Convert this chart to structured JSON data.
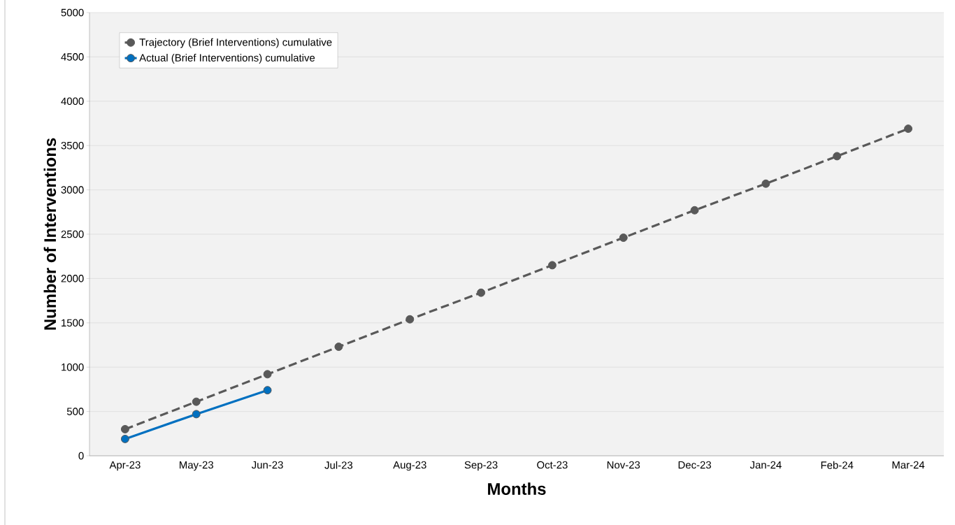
{
  "chart_data": {
    "type": "line",
    "xlabel": "Months",
    "ylabel": "Number of Interventions",
    "categories": [
      "Apr-23",
      "May-23",
      "Jun-23",
      "Jul-23",
      "Aug-23",
      "Sep-23",
      "Oct-23",
      "Nov-23",
      "Dec-23",
      "Jan-24",
      "Feb-24",
      "Mar-24"
    ],
    "series": [
      {
        "name": "Trajectory (Brief Interventions) cumulative",
        "color": "#595959",
        "line_style": "dashed",
        "values": [
          300,
          610,
          920,
          1230,
          1540,
          1840,
          2150,
          2460,
          2770,
          3070,
          3380,
          3690
        ]
      },
      {
        "name": "Actual (Brief Interventions) cumulative",
        "color": "#0070c0",
        "line_style": "solid",
        "values": [
          190,
          470,
          740,
          null,
          null,
          null,
          null,
          null,
          null,
          null,
          null,
          null
        ]
      }
    ],
    "ylim": [
      0,
      5000
    ],
    "yticks": [
      0,
      500,
      1000,
      1500,
      2000,
      2500,
      3000,
      3500,
      4000,
      4500,
      5000
    ],
    "grid": "y",
    "legend": "top left",
    "marker": "circle"
  }
}
